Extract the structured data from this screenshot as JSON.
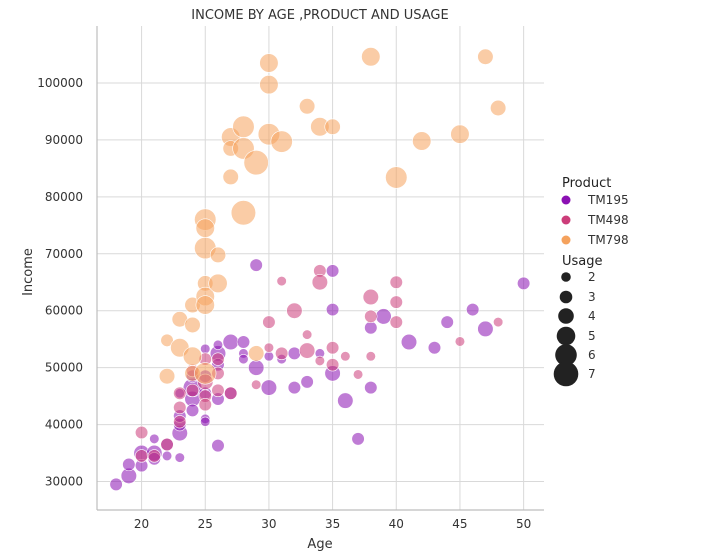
{
  "chart_data": {
    "type": "scatter",
    "title": "INCOME BY AGE ,PRODUCT AND USAGE",
    "xlabel": "Age",
    "ylabel": "Income",
    "xlim": [
      16.5,
      51.6
    ],
    "ylim": [
      25000,
      110000
    ],
    "xticks": [
      "20",
      "25",
      "30",
      "35",
      "40",
      "45",
      "50"
    ],
    "yticks": [
      "30000",
      "40000",
      "50000",
      "60000",
      "70000",
      "80000",
      "90000",
      "100000"
    ],
    "grid": true,
    "legend": {
      "position": "right",
      "hue_title": "Product",
      "size_title": "Usage",
      "sizes": [
        "2",
        "3",
        "4",
        "5",
        "6",
        "7"
      ]
    },
    "series": [
      {
        "name": "TM195",
        "color": "#8b10b3",
        "points": [
          [
            18,
            29500,
            3
          ],
          [
            19,
            31000,
            4
          ],
          [
            19,
            33000,
            3
          ],
          [
            20,
            35000,
            4
          ],
          [
            20,
            32800,
            3
          ],
          [
            21,
            35000,
            4
          ],
          [
            21,
            34000,
            3
          ],
          [
            21,
            37500,
            2
          ],
          [
            22,
            36500,
            3
          ],
          [
            22,
            34500,
            2
          ],
          [
            23,
            38500,
            4
          ],
          [
            23,
            40000,
            3
          ],
          [
            23,
            41500,
            3
          ],
          [
            23,
            34200,
            2
          ],
          [
            23,
            45500,
            2
          ],
          [
            24,
            44500,
            4
          ],
          [
            24,
            42500,
            3
          ],
          [
            24,
            46500,
            5
          ],
          [
            24,
            48500,
            3
          ],
          [
            25,
            48500,
            3
          ],
          [
            25,
            45500,
            3
          ],
          [
            25,
            41000,
            2
          ],
          [
            25,
            40500,
            2
          ],
          [
            25,
            53300,
            2
          ],
          [
            26,
            52500,
            4
          ],
          [
            26,
            50500,
            3
          ],
          [
            26,
            44500,
            3
          ],
          [
            26,
            36300,
            3
          ],
          [
            26,
            54000,
            2
          ],
          [
            27,
            54500,
            4
          ],
          [
            27,
            45500,
            3
          ],
          [
            28,
            54500,
            3
          ],
          [
            28,
            52500,
            2
          ],
          [
            28,
            51500,
            2
          ],
          [
            29,
            68000,
            3
          ],
          [
            29,
            50000,
            4
          ],
          [
            30,
            46500,
            4
          ],
          [
            30,
            52000,
            2
          ],
          [
            31,
            51500,
            2
          ],
          [
            32,
            46500,
            3
          ],
          [
            32,
            52500,
            3
          ],
          [
            33,
            47500,
            3
          ],
          [
            34,
            52500,
            2
          ],
          [
            35,
            67000,
            3
          ],
          [
            35,
            60200,
            3
          ],
          [
            35,
            49000,
            4
          ],
          [
            36,
            44200,
            4
          ],
          [
            37,
            37500,
            3
          ],
          [
            38,
            57000,
            3
          ],
          [
            38,
            46500,
            3
          ],
          [
            39,
            59000,
            4
          ],
          [
            41,
            54500,
            4
          ],
          [
            43,
            53500,
            3
          ],
          [
            44,
            58000,
            3
          ],
          [
            46,
            60200,
            3
          ],
          [
            47,
            56800,
            4
          ],
          [
            50,
            64800,
            3
          ]
        ]
      },
      {
        "name": "TM498",
        "color": "#cc3d7a",
        "points": [
          [
            20,
            38600,
            3
          ],
          [
            20,
            34500,
            3
          ],
          [
            21,
            34500,
            3
          ],
          [
            22,
            36500,
            3
          ],
          [
            23,
            40500,
            3
          ],
          [
            23,
            43000,
            3
          ],
          [
            23,
            45500,
            3
          ],
          [
            24,
            49500,
            3
          ],
          [
            24,
            46000,
            3
          ],
          [
            25,
            51500,
            3
          ],
          [
            25,
            47500,
            4
          ],
          [
            25,
            45000,
            3
          ],
          [
            25,
            43500,
            3
          ],
          [
            26,
            51500,
            3
          ],
          [
            26,
            49000,
            3
          ],
          [
            26,
            46000,
            3
          ],
          [
            27,
            45500,
            3
          ],
          [
            29,
            47000,
            2
          ],
          [
            30,
            58000,
            3
          ],
          [
            30,
            53500,
            2
          ],
          [
            31,
            65200,
            2
          ],
          [
            31,
            52500,
            3
          ],
          [
            32,
            60000,
            4
          ],
          [
            33,
            53000,
            4
          ],
          [
            33,
            55800,
            2
          ],
          [
            34,
            67000,
            3
          ],
          [
            34,
            65000,
            4
          ],
          [
            34,
            51200,
            2
          ],
          [
            35,
            53500,
            3
          ],
          [
            35,
            50500,
            3
          ],
          [
            36,
            52000,
            2
          ],
          [
            37,
            48800,
            2
          ],
          [
            38,
            62400,
            4
          ],
          [
            38,
            59000,
            3
          ],
          [
            38,
            52000,
            2
          ],
          [
            40,
            65000,
            3
          ],
          [
            40,
            61500,
            3
          ],
          [
            40,
            58000,
            3
          ],
          [
            45,
            54600,
            2
          ],
          [
            48,
            58000,
            2
          ]
        ]
      },
      {
        "name": "TM798",
        "color": "#f5a25d",
        "points": [
          [
            22,
            54800,
            3
          ],
          [
            22,
            48500,
            4
          ],
          [
            23,
            58500,
            4
          ],
          [
            23,
            53500,
            5
          ],
          [
            24,
            61000,
            4
          ],
          [
            24,
            57500,
            4
          ],
          [
            24,
            52000,
            5
          ],
          [
            24,
            49000,
            4
          ],
          [
            25,
            76000,
            6
          ],
          [
            25,
            74500,
            5
          ],
          [
            25,
            71000,
            6
          ],
          [
            25,
            64800,
            4
          ],
          [
            25,
            62500,
            5
          ],
          [
            25,
            61000,
            5
          ],
          [
            25,
            49000,
            6
          ],
          [
            26,
            69800,
            4
          ],
          [
            26,
            64800,
            5
          ],
          [
            27,
            90500,
            5
          ],
          [
            27,
            88500,
            4
          ],
          [
            27,
            83500,
            4
          ],
          [
            28,
            92300,
            6
          ],
          [
            28,
            88500,
            6
          ],
          [
            28,
            77200,
            7
          ],
          [
            29,
            86000,
            7
          ],
          [
            29,
            52500,
            4
          ],
          [
            30,
            103500,
            5
          ],
          [
            30,
            99700,
            5
          ],
          [
            30,
            91000,
            6
          ],
          [
            31,
            89700,
            6
          ],
          [
            33,
            95900,
            4
          ],
          [
            34,
            92300,
            5
          ],
          [
            35,
            92300,
            4
          ],
          [
            38,
            104600,
            5
          ],
          [
            40,
            83400,
            6
          ],
          [
            42,
            89800,
            5
          ],
          [
            45,
            91000,
            5
          ],
          [
            47,
            104600,
            4
          ],
          [
            48,
            95600,
            4
          ]
        ]
      }
    ]
  }
}
